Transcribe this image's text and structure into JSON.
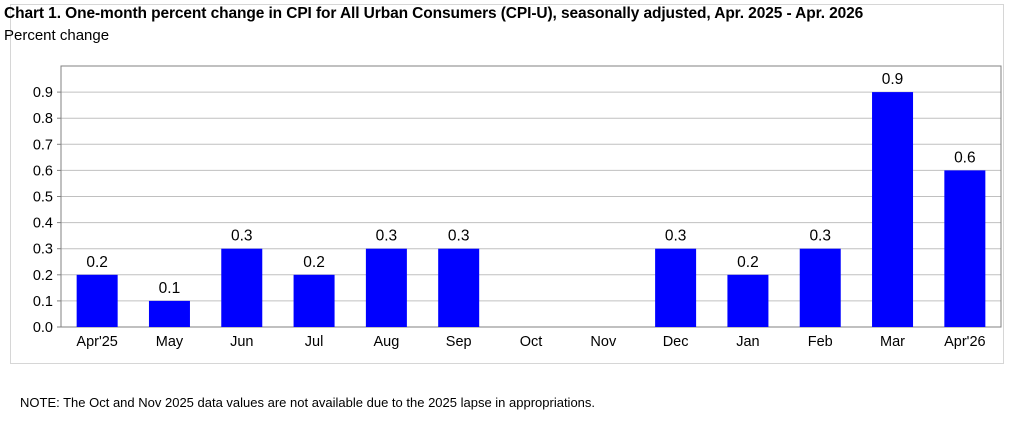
{
  "chart_data": {
    "type": "bar",
    "title": "Chart 1. One-month percent change in CPI for All Urban Consumers (CPI-U), seasonally adjusted, Apr. 2025 - Apr. 2026",
    "ylabel": "Percent change",
    "xlabel": "",
    "categories": [
      "Apr'25",
      "May",
      "Jun",
      "Jul",
      "Aug",
      "Sep",
      "Oct",
      "Nov",
      "Dec",
      "Jan",
      "Feb",
      "Mar",
      "Apr'26"
    ],
    "values": [
      0.2,
      0.1,
      0.3,
      0.2,
      0.3,
      0.3,
      null,
      null,
      0.3,
      0.2,
      0.3,
      0.9,
      0.6
    ],
    "data_labels": [
      "0.2",
      "0.1",
      "0.3",
      "0.2",
      "0.3",
      "0.3",
      "",
      "",
      "0.3",
      "0.2",
      "0.3",
      "0.9",
      "0.6"
    ],
    "yticks": [
      "0.0",
      "0.1",
      "0.2",
      "0.3",
      "0.4",
      "0.5",
      "0.6",
      "0.7",
      "0.8",
      "0.9"
    ],
    "ylim": [
      0,
      1.0
    ],
    "grid": true,
    "bar_color": "#0000ff",
    "grid_color": "#c0c0c0"
  },
  "note": "NOTE: The Oct and Nov 2025 data values are not available due to the 2025 lapse in appropriations."
}
